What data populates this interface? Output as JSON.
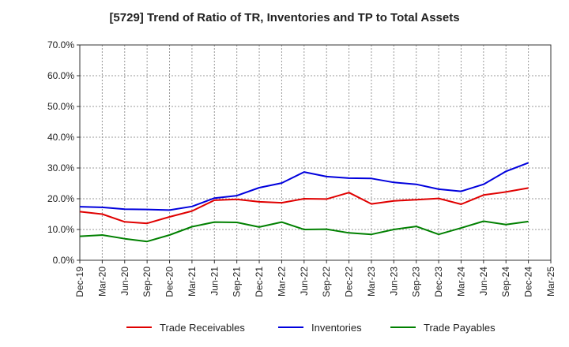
{
  "chart_data": {
    "type": "line",
    "title": "[5729]  Trend of Ratio of TR, Inventories and TP to Total Assets",
    "xlabel": "",
    "ylabel": "",
    "categories": [
      "Dec-19",
      "Mar-20",
      "Jun-20",
      "Sep-20",
      "Dec-20",
      "Mar-21",
      "Jun-21",
      "Sep-21",
      "Dec-21",
      "Mar-22",
      "Jun-22",
      "Sep-22",
      "Dec-22",
      "Mar-23",
      "Jun-23",
      "Sep-23",
      "Dec-23",
      "Mar-24",
      "Jun-24",
      "Sep-24",
      "Dec-24",
      "Mar-25"
    ],
    "y_ticks": [
      "0.0%",
      "10.0%",
      "20.0%",
      "30.0%",
      "40.0%",
      "50.0%",
      "60.0%",
      "70.0%"
    ],
    "ylim": [
      0,
      70
    ],
    "grid": true,
    "legend_position": "bottom",
    "series": [
      {
        "name": "Trade Receivables",
        "color": "#e00000",
        "values": [
          15.8,
          15.0,
          12.5,
          12.0,
          14.1,
          16.0,
          19.5,
          19.8,
          19.0,
          18.7,
          20.0,
          19.9,
          22.0,
          18.3,
          19.3,
          19.7,
          20.1,
          18.2,
          21.2,
          22.2,
          23.5,
          null
        ]
      },
      {
        "name": "Inventories",
        "color": "#0000dd",
        "values": [
          17.4,
          17.2,
          16.6,
          16.5,
          16.3,
          17.5,
          20.2,
          21.0,
          23.6,
          25.1,
          28.7,
          27.2,
          26.7,
          26.6,
          25.3,
          24.7,
          23.1,
          22.4,
          24.7,
          28.9,
          31.7,
          null
        ]
      },
      {
        "name": "Trade Payables",
        "color": "#008000",
        "values": [
          7.8,
          8.2,
          7.0,
          6.1,
          8.2,
          10.9,
          12.4,
          12.3,
          10.8,
          12.4,
          10.0,
          10.1,
          8.9,
          8.4,
          10.0,
          11.0,
          8.4,
          10.5,
          12.7,
          11.6,
          12.6,
          null
        ]
      }
    ]
  }
}
